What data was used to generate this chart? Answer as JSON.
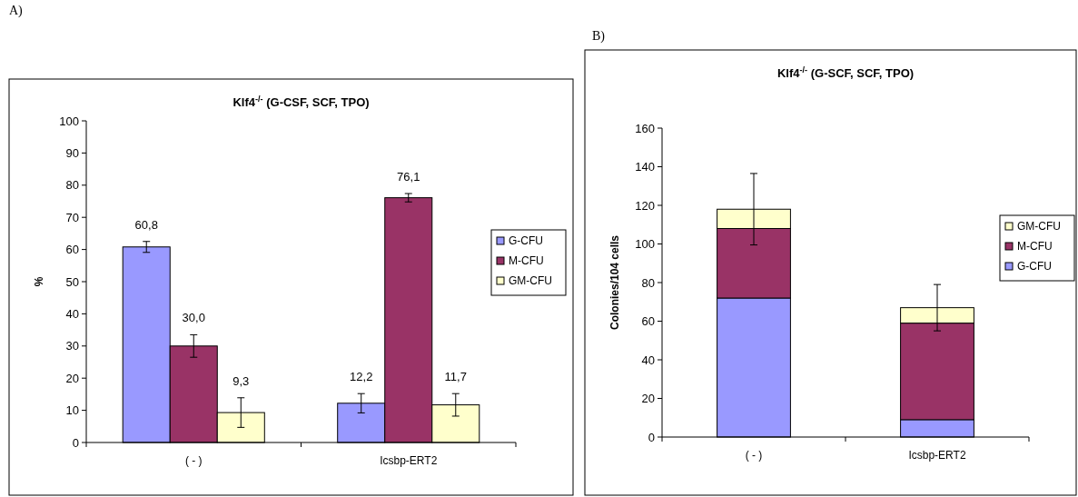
{
  "chart_data": [
    {
      "type": "bar",
      "title": "Klf4$^{-/-}$ (G-CSF, SCF, TPO)",
      "ylabel": "%",
      "annotations": [
        "A)"
      ],
      "categories": [
        "( - )",
        "Icsbp-ERT2"
      ],
      "ylim": [
        0,
        100
      ],
      "yticks": [
        0,
        10,
        20,
        30,
        40,
        50,
        60,
        70,
        80,
        90,
        100
      ],
      "legend": "right",
      "series": [
        {
          "name": "G-CFU",
          "color": "#9999ff",
          "values": [
            60.8,
            12.2
          ],
          "errors": [
            1.7,
            3
          ],
          "value_labels": [
            "60,8",
            "12,2"
          ]
        },
        {
          "name": "M-CFU",
          "color": "#993366",
          "values": [
            30.0,
            76.1
          ],
          "errors": [
            3.5,
            1.3
          ],
          "value_labels": [
            "30,0",
            "76,1"
          ]
        },
        {
          "name": "GM-CFU",
          "color": "#ffffcc",
          "values": [
            9.3,
            11.7
          ],
          "errors": [
            4.6,
            3.5
          ],
          "value_labels": [
            "9,3",
            "11,7"
          ]
        }
      ]
    },
    {
      "type": "bar",
      "title": "Klf4$^{-/-}$ (G-SCF, SCF, TPO)",
      "ylabel": "Colonies/104 cells",
      "annotations": [
        "B)"
      ],
      "categories": [
        "( - )",
        "Icsbp-ERT2"
      ],
      "ylim": [
        0,
        160
      ],
      "yticks": [
        0,
        20,
        40,
        60,
        80,
        100,
        120,
        140,
        160
      ],
      "legend": "right",
      "stacked": true,
      "series": [
        {
          "name": "G-CFU",
          "color": "#9999ff",
          "values": [
            72,
            9
          ]
        },
        {
          "name": "M-CFU",
          "color": "#993366",
          "values": [
            36,
            50
          ]
        },
        {
          "name": "GM-CFU",
          "color": "#ffffcc",
          "values": [
            10,
            8
          ],
          "errors": [
            18.5,
            12
          ]
        }
      ]
    }
  ]
}
